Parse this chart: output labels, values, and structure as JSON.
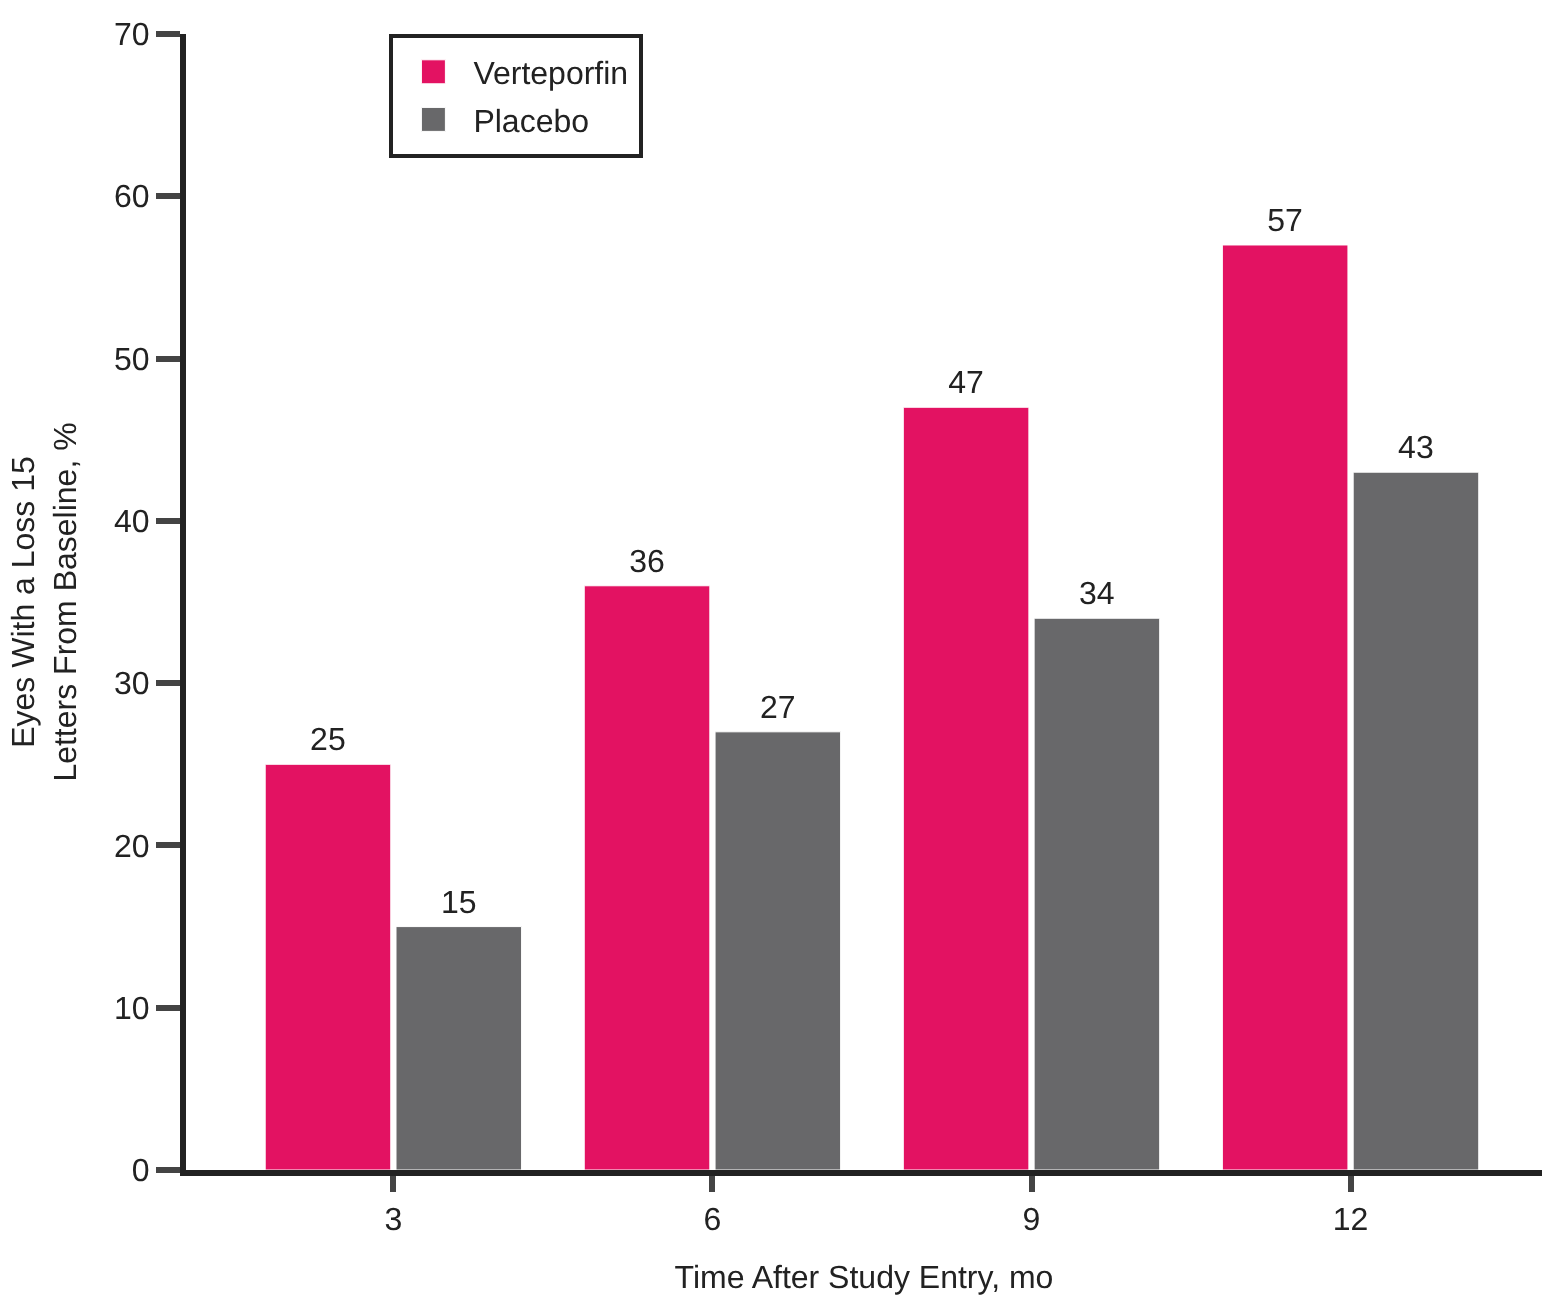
{
  "chart_data": {
    "type": "bar",
    "xlabel": "Time After Study Entry, mo",
    "ylabel": "Eyes With a Loss 15\nLetters From Baseline, %",
    "categories": [
      "3",
      "6",
      "9",
      "12"
    ],
    "series": [
      {
        "name": "Verteporfin",
        "color": "#e31262",
        "values": [
          25,
          36,
          47,
          57
        ]
      },
      {
        "name": "Placebo",
        "color": "#68686a",
        "values": [
          15,
          27,
          34,
          43
        ]
      }
    ],
    "ylim": [
      0,
      70
    ],
    "yticks": [
      0,
      10,
      20,
      30,
      40,
      50,
      60,
      70
    ],
    "data_labels": true,
    "legend": "top left",
    "grid": false
  }
}
